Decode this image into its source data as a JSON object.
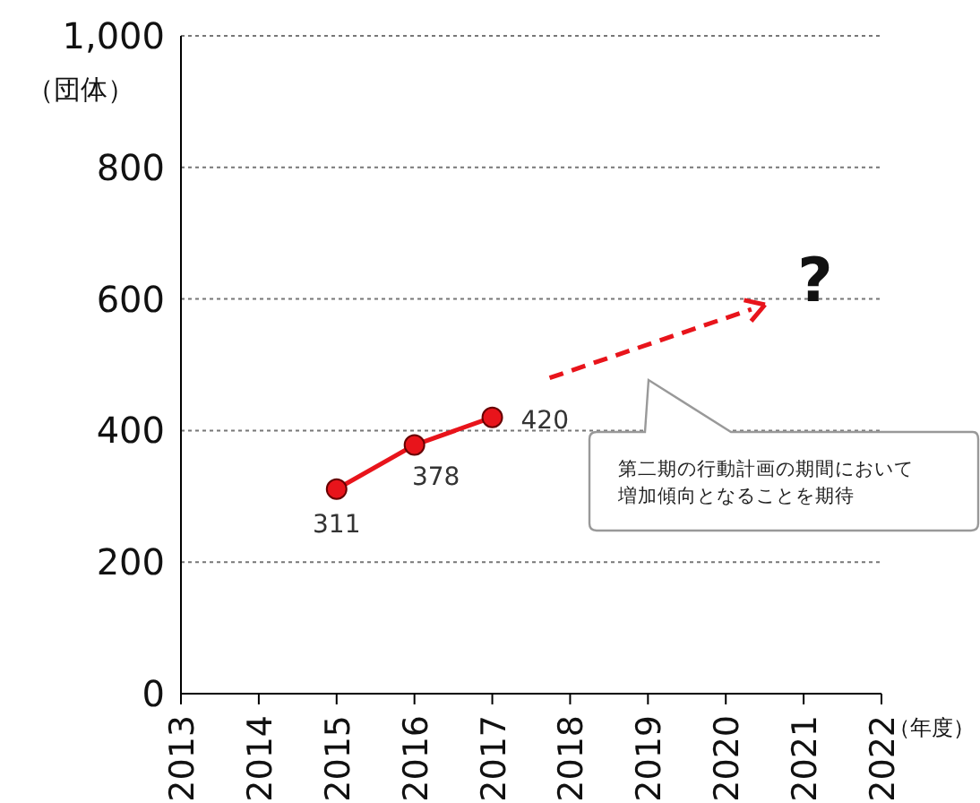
{
  "chart_data": {
    "type": "line",
    "x": [
      2015,
      2016,
      2017
    ],
    "series": [
      {
        "color": "#e8141b",
        "values": [
          311,
          378,
          420
        ]
      }
    ],
    "xlim": [
      2013,
      2022
    ],
    "xticks": [
      2013,
      2014,
      2015,
      2016,
      2017,
      2018,
      2019,
      2020,
      2021,
      2022
    ],
    "ylim": [
      0,
      1000
    ],
    "yticks": [
      0,
      200,
      400,
      600,
      800,
      {
        "value": 1000,
        "label": "1,000"
      }
    ],
    "ylabel": "（団体）",
    "xlabel": "（年度）",
    "grid": "y",
    "marker": "circle",
    "line_style": "solid",
    "data_labels": true,
    "annotations": [
      "?",
      "第二期の行動計画の期間において増加傾向となることを期待"
    ]
  }
}
